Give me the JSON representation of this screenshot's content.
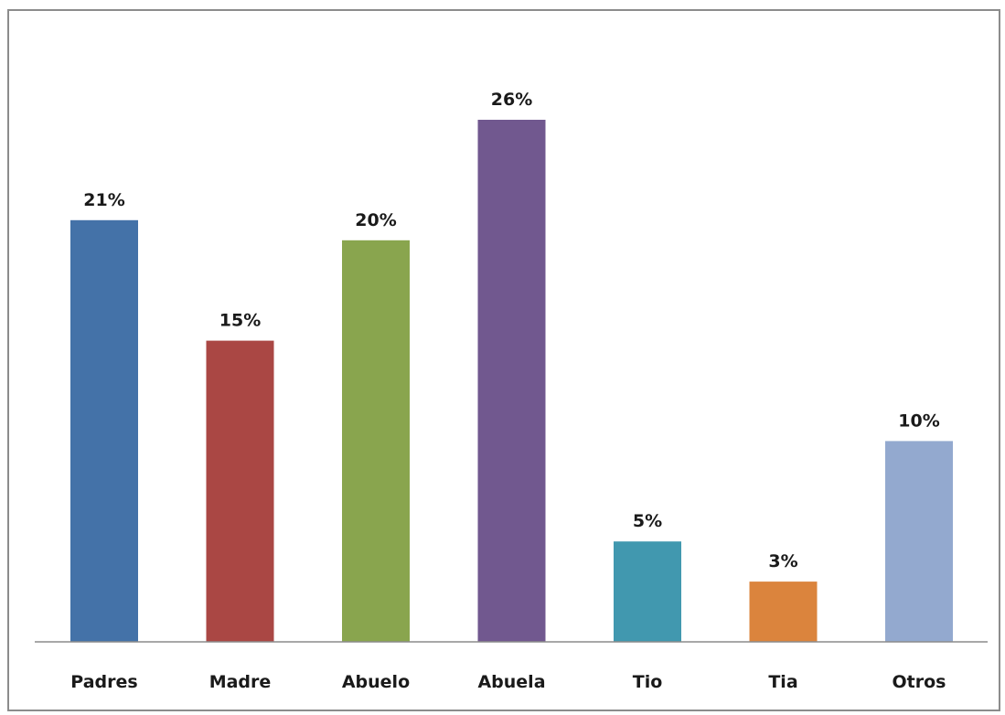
{
  "chart_data": {
    "type": "bar",
    "title": "",
    "xlabel": "",
    "ylabel": "",
    "categories": [
      "Padres",
      "Madre",
      "Abuelo",
      "Abuela",
      "Tio",
      "Tia",
      "Otros"
    ],
    "values": [
      21,
      15,
      20,
      26,
      5,
      3,
      10
    ],
    "value_labels": [
      "21%",
      "15%",
      "20%",
      "26%",
      "5%",
      "3%",
      "10%"
    ],
    "unit": "%",
    "ylim": [
      0,
      26
    ],
    "grid": false,
    "legend": "none",
    "bar_colors": [
      "#4472a8",
      "#aa4744",
      "#89a54e",
      "#71588f",
      "#4198af",
      "#db843d",
      "#93a9cf"
    ],
    "axis_color": "#8c8c8c"
  }
}
